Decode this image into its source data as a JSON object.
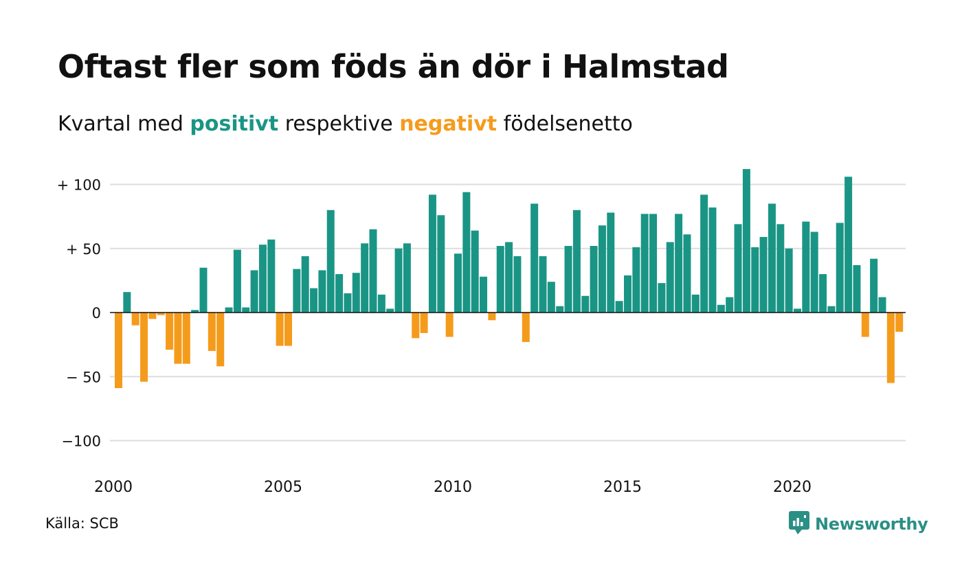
{
  "title": "Oftast fler som föds än dör i Halmstad",
  "subtitle": {
    "before": "Kvartal med ",
    "positive": "positivt",
    "middle": " respektive ",
    "negative": "negativt",
    "after": " födelsenetto"
  },
  "source": "Källa: SCB",
  "logo_text": "Newsworthy",
  "colors": {
    "positive": "#1a9585",
    "negative": "#f59b1c",
    "grid": "#dddddd",
    "zero": "#111111"
  },
  "chart_data": {
    "type": "bar",
    "ylim": [
      -110,
      112
    ],
    "grid": true,
    "y_ticks": [
      {
        "value": 100,
        "label": "+ 100"
      },
      {
        "value": 50,
        "label": "+  50"
      },
      {
        "value": 0,
        "label": "0"
      },
      {
        "value": -50,
        "label": "− 50"
      },
      {
        "value": -100,
        "label": "−100"
      }
    ],
    "x_ticks": [
      "2000",
      "2005",
      "2010",
      "2015",
      "2020"
    ],
    "x_start": "2000 Q1",
    "frequency": "quarterly",
    "values": [
      -59,
      16,
      -10,
      -54,
      -5,
      -2,
      -29,
      -40,
      -40,
      2,
      35,
      -30,
      -42,
      4,
      49,
      4,
      33,
      53,
      57,
      -26,
      -26,
      34,
      44,
      19,
      33,
      80,
      30,
      15,
      31,
      54,
      65,
      14,
      3,
      50,
      54,
      -20,
      -16,
      92,
      76,
      -19,
      46,
      94,
      64,
      28,
      -6,
      52,
      55,
      44,
      -23,
      85,
      44,
      24,
      5,
      52,
      80,
      13,
      52,
      68,
      78,
      9,
      29,
      51,
      77,
      77,
      23,
      55,
      77,
      61,
      14,
      92,
      82,
      6,
      12,
      69,
      112,
      51,
      59,
      85,
      69,
      50,
      3,
      71,
      63,
      30,
      5,
      70,
      106,
      37,
      -19,
      42,
      12,
      -55,
      -15
    ]
  }
}
